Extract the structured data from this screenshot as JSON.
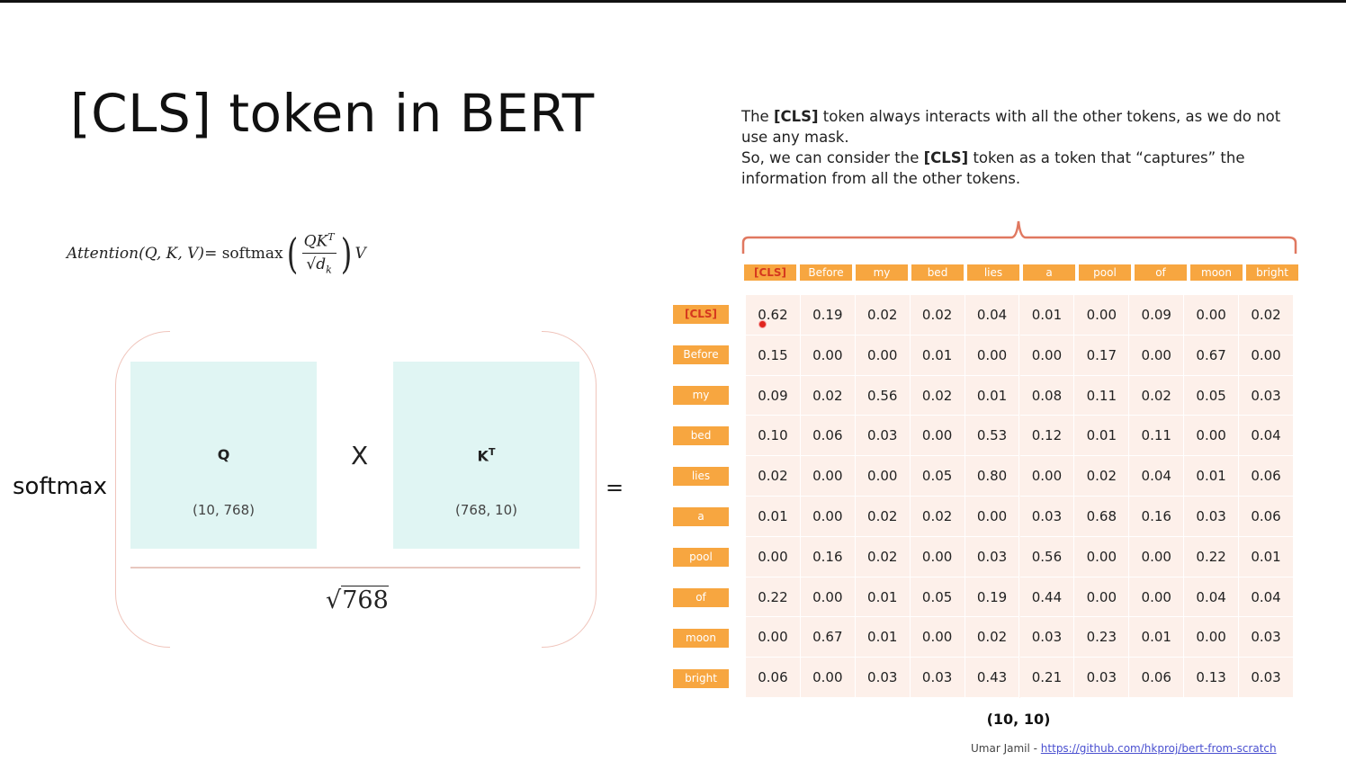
{
  "title": "[CLS] token in BERT",
  "description": {
    "line1_pre": "The ",
    "line1_bold": "[CLS]",
    "line1_post": " token always interacts with all the other tokens, as we do not use any mask.",
    "line2_pre": "So, we can consider the ",
    "line2_bold": "[CLS]",
    "line2_post": " token as a token that “captures” the information from all the other tokens."
  },
  "formula": {
    "lhs": "Attention(Q, K, V)",
    "eq": " = softmax",
    "num_q": "QK",
    "num_sup": "T",
    "den_d": "d",
    "den_sub": "k",
    "v": "V"
  },
  "diagram": {
    "softmax": "softmax",
    "q_label": "Q",
    "q_dims": "(10, 768)",
    "times": "X",
    "k_label": "K",
    "k_sup": "T",
    "k_dims": "(768, 10)",
    "sqrt_value": "768",
    "equals": "="
  },
  "matrix": {
    "tokens": [
      "[CLS]",
      "Before",
      "my",
      "bed",
      "lies",
      "a",
      "pool",
      "of",
      "moon",
      "bright"
    ],
    "values": [
      [
        "0.62",
        "0.19",
        "0.02",
        "0.02",
        "0.04",
        "0.01",
        "0.00",
        "0.09",
        "0.00",
        "0.02"
      ],
      [
        "0.15",
        "0.00",
        "0.00",
        "0.01",
        "0.00",
        "0.00",
        "0.17",
        "0.00",
        "0.67",
        "0.00"
      ],
      [
        "0.09",
        "0.02",
        "0.56",
        "0.02",
        "0.01",
        "0.08",
        "0.11",
        "0.02",
        "0.05",
        "0.03"
      ],
      [
        "0.10",
        "0.06",
        "0.03",
        "0.00",
        "0.53",
        "0.12",
        "0.01",
        "0.11",
        "0.00",
        "0.04"
      ],
      [
        "0.02",
        "0.00",
        "0.00",
        "0.05",
        "0.80",
        "0.00",
        "0.02",
        "0.04",
        "0.01",
        "0.06"
      ],
      [
        "0.01",
        "0.00",
        "0.02",
        "0.02",
        "0.00",
        "0.03",
        "0.68",
        "0.16",
        "0.03",
        "0.06"
      ],
      [
        "0.00",
        "0.16",
        "0.02",
        "0.00",
        "0.03",
        "0.56",
        "0.00",
        "0.00",
        "0.22",
        "0.01"
      ],
      [
        "0.22",
        "0.00",
        "0.01",
        "0.05",
        "0.19",
        "0.44",
        "0.00",
        "0.00",
        "0.04",
        "0.04"
      ],
      [
        "0.00",
        "0.67",
        "0.01",
        "0.00",
        "0.02",
        "0.03",
        "0.23",
        "0.01",
        "0.00",
        "0.03"
      ],
      [
        "0.06",
        "0.00",
        "0.03",
        "0.03",
        "0.43",
        "0.21",
        "0.03",
        "0.06",
        "0.13",
        "0.03"
      ]
    ],
    "shape": "(10, 10)"
  },
  "credit": {
    "author": "Umar Jamil - ",
    "link": "https://github.com/hkproj/bert-from-scratch"
  },
  "colors": {
    "token_header": "#f7a640",
    "cls_text": "#d5381e",
    "matrix_bg": "#fdf0ea",
    "box_fill": "#e0f5f3",
    "brace": "#e07860"
  }
}
